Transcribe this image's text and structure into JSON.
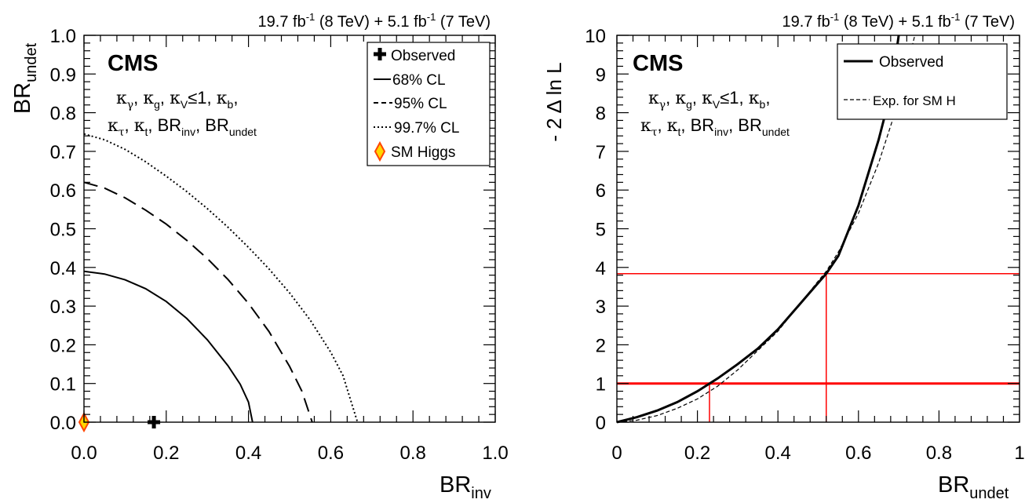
{
  "chart_data": [
    {
      "type": "line",
      "panel": "left",
      "lumi_label": {
        "a": "19.7 fb",
        "a_sup": "-1",
        "a_rest": " (8 TeV) +  5.1 fb",
        "b_sup": "-1",
        "b_rest": " (7 TeV)"
      },
      "experiment": "CMS",
      "model_line1": {
        "k1": "κ",
        "s1": "γ",
        "sep1": ", ",
        "k2": "κ",
        "s2": "g",
        "sep2": ", ",
        "k3": "κ",
        "s3": "V",
        "le": "≤1, ",
        "k4": "κ",
        "s4": "b",
        "end": ","
      },
      "model_line2": {
        "k1": "κ",
        "s1": "τ",
        "sep1": ", ",
        "k2": "κ",
        "s2": "t",
        "sep2": ", BR",
        "s3": "inv",
        "sep3": ", BR",
        "s4": "undet"
      },
      "xlabel": {
        "main": "BR",
        "sub": "inv"
      },
      "ylabel": {
        "main": "BR",
        "sub": "undet"
      },
      "xlim": [
        0,
        1
      ],
      "ylim": [
        0,
        1
      ],
      "xticks": [
        "0.0",
        "0.2",
        "0.4",
        "0.6",
        "0.8",
        "1.0"
      ],
      "yticks": [
        "0.0",
        "0.1",
        "0.2",
        "0.3",
        "0.4",
        "0.5",
        "0.6",
        "0.7",
        "0.8",
        "0.9",
        "1.0"
      ],
      "legend": [
        {
          "label": "Observed",
          "style": "cross"
        },
        {
          "label": "68% CL",
          "style": "solid"
        },
        {
          "label": "95% CL",
          "style": "dashed"
        },
        {
          "label": "99.7% CL",
          "style": "dotted"
        },
        {
          "label": "SM Higgs",
          "style": "diamond"
        }
      ],
      "legend_position": "top-right",
      "observed_point": {
        "x": 0.17,
        "y": 0.0
      },
      "sm_point": {
        "x": 0.0,
        "y": 0.0
      },
      "contours": [
        {
          "name": "68% CL",
          "style": "solid",
          "x": [
            0.0,
            0.05,
            0.1,
            0.15,
            0.2,
            0.25,
            0.3,
            0.35,
            0.38,
            0.4,
            0.41
          ],
          "y": [
            0.39,
            0.383,
            0.368,
            0.345,
            0.312,
            0.268,
            0.213,
            0.146,
            0.098,
            0.052,
            0.0
          ]
        },
        {
          "name": "95% CL",
          "style": "dashed",
          "x": [
            0.0,
            0.05,
            0.1,
            0.15,
            0.2,
            0.25,
            0.3,
            0.35,
            0.4,
            0.45,
            0.5,
            0.53,
            0.555
          ],
          "y": [
            0.62,
            0.605,
            0.58,
            0.548,
            0.512,
            0.47,
            0.423,
            0.369,
            0.307,
            0.234,
            0.144,
            0.08,
            0.0
          ]
        },
        {
          "name": "99.7% CL",
          "style": "dotted",
          "x": [
            0.0,
            0.05,
            0.1,
            0.15,
            0.2,
            0.25,
            0.3,
            0.35,
            0.4,
            0.45,
            0.5,
            0.55,
            0.6,
            0.63,
            0.665
          ],
          "y": [
            0.745,
            0.73,
            0.705,
            0.673,
            0.636,
            0.596,
            0.552,
            0.504,
            0.452,
            0.396,
            0.334,
            0.264,
            0.181,
            0.12,
            0.0
          ]
        }
      ]
    },
    {
      "type": "line",
      "panel": "right",
      "lumi_label": {
        "a": "19.7 fb",
        "a_sup": "-1",
        "a_rest": " (8 TeV) +  5.1 fb",
        "b_sup": "-1",
        "b_rest": " (7 TeV)"
      },
      "experiment": "CMS",
      "model_line1": {
        "k1": "κ",
        "s1": "γ",
        "sep1": ", ",
        "k2": "κ",
        "s2": "g",
        "sep2": ", ",
        "k3": "κ",
        "s3": "V",
        "le": "≤1, ",
        "k4": "κ",
        "s4": "b",
        "end": ","
      },
      "model_line2": {
        "k1": "κ",
        "s1": "τ",
        "sep1": ", ",
        "k2": "κ",
        "s2": "t",
        "sep2": ", BR",
        "s3": "inv",
        "sep3": ", BR",
        "s4": "undet"
      },
      "xlabel": {
        "main": "BR",
        "sub": "undet"
      },
      "ylabel": "- 2 Δ ln L",
      "xlim": [
        0,
        1
      ],
      "ylim": [
        0,
        10
      ],
      "xticks": [
        "0",
        "0.2",
        "0.4",
        "0.6",
        "0.8",
        "1"
      ],
      "yticks": [
        "0",
        "1",
        "2",
        "3",
        "4",
        "5",
        "6",
        "7",
        "8",
        "9",
        "10"
      ],
      "legend": [
        {
          "label": "Observed",
          "style": "thick-solid"
        },
        {
          "label": "Exp. for SM H",
          "style": "dashed"
        }
      ],
      "legend_position": "top-right",
      "reference_lines": {
        "y": [
          1,
          3.84
        ],
        "x_crossings": [
          0.23,
          0.52
        ]
      },
      "series": [
        {
          "name": "Observed",
          "x": [
            0.0,
            0.05,
            0.1,
            0.15,
            0.2,
            0.25,
            0.3,
            0.35,
            0.4,
            0.45,
            0.5,
            0.52,
            0.55,
            0.6,
            0.65,
            0.68,
            0.7
          ],
          "y": [
            0.0,
            0.13,
            0.3,
            0.52,
            0.8,
            1.13,
            1.5,
            1.9,
            2.4,
            3.0,
            3.6,
            3.84,
            4.3,
            5.6,
            7.3,
            8.5,
            10.0
          ]
        },
        {
          "name": "Exp. for SM H",
          "x": [
            0.0,
            0.05,
            0.1,
            0.15,
            0.2,
            0.25,
            0.3,
            0.35,
            0.4,
            0.45,
            0.5,
            0.52,
            0.55,
            0.6,
            0.65,
            0.7,
            0.74
          ],
          "y": [
            0.0,
            0.05,
            0.17,
            0.36,
            0.6,
            0.93,
            1.35,
            1.85,
            2.35,
            3.0,
            3.65,
            3.9,
            4.4,
            5.4,
            6.7,
            8.3,
            10.0
          ]
        }
      ]
    }
  ]
}
